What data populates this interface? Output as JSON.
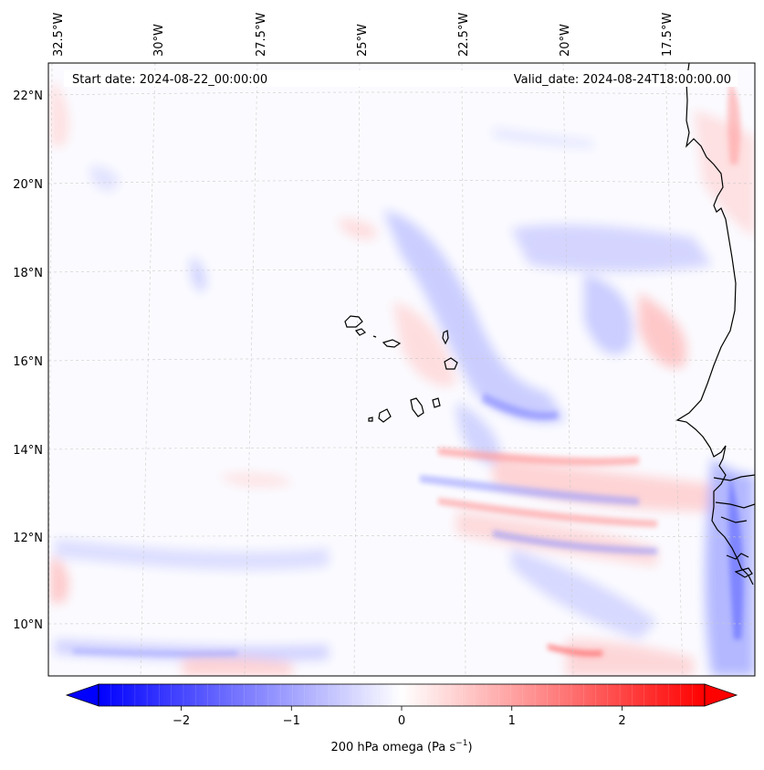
{
  "map": {
    "start_label": "Start date: 2024-08-22_00:00:00",
    "valid_label": "Valid_date: 2024-08-24T18:00:00.00",
    "lon_labels": [
      "32.5°W",
      "30°W",
      "27.5°W",
      "25°W",
      "22.5°W",
      "20°W",
      "17.5°W"
    ],
    "lat_labels": [
      "22°N",
      "20°N",
      "18°N",
      "16°N",
      "14°N",
      "12°N",
      "10°N"
    ],
    "colors": {
      "negative": "#0000ff",
      "zero": "#ffffff",
      "positive": "#ff0000",
      "coast": "#000000",
      "grid": "#c8c8c8"
    }
  },
  "colorbar": {
    "label_main": "200 hPa omega (Pa s",
    "label_exp": "−1",
    "label_close": ")",
    "min": -2.75,
    "max": 2.75,
    "ticks": [
      -2,
      -1,
      0,
      1,
      2
    ],
    "tick_labels": [
      "−2",
      "−1",
      "0",
      "1",
      "2"
    ],
    "extend": "both",
    "levels": 50
  }
}
